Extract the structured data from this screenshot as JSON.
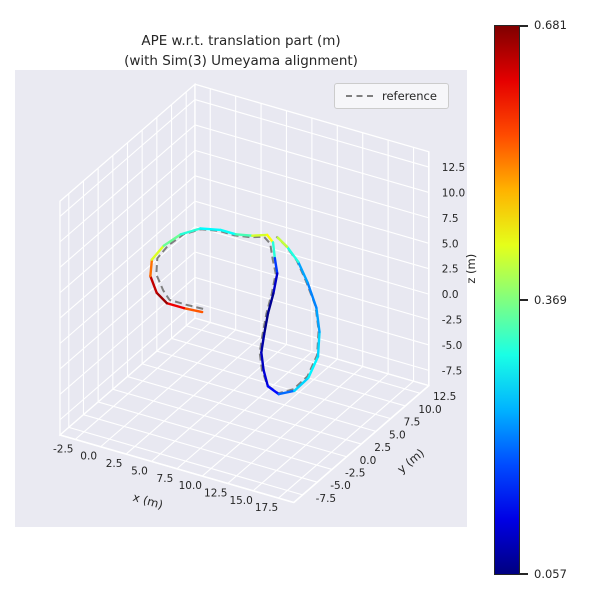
{
  "chart_data": {
    "type": "line",
    "subtype": "3d-trajectory",
    "title": "APE w.r.t. translation part (m)",
    "subtitle": "(with Sim(3) Umeyama alignment)",
    "xlabel": "x (m)",
    "ylabel": "y (m)",
    "zlabel": "z (m)",
    "legend": [
      "reference"
    ],
    "legend_position": "upper right",
    "grid": true,
    "xlim": [
      -4,
      19
    ],
    "ylim": [
      -9,
      14
    ],
    "zlim": [
      -9,
      14
    ],
    "x_ticks": [
      "-2.5",
      "0.0",
      "2.5",
      "5.0",
      "7.5",
      "10.0",
      "12.5",
      "15.0",
      "17.5"
    ],
    "y_ticks": [
      "-7.5",
      "-5.0",
      "-2.5",
      "0.0",
      "2.5",
      "5.0",
      "7.5",
      "10.0",
      "12.5"
    ],
    "z_ticks": [
      "-7.5",
      "-5.0",
      "-2.5",
      "0.0",
      "2.5",
      "5.0",
      "7.5",
      "10.0",
      "12.5"
    ],
    "colorbar": {
      "colormap": "jet",
      "vmin": 0.057,
      "vmax": 0.681,
      "ticks": [
        "0.681",
        "0.369",
        "0.057"
      ]
    },
    "reference": [
      [
        4.3,
        1.0,
        0.8
      ],
      [
        2.9,
        0.6,
        1.0
      ],
      [
        1.4,
        0.3,
        1.2
      ],
      [
        0.5,
        0.8,
        1.6
      ],
      [
        -0.7,
        1.7,
        2.4
      ],
      [
        -1.3,
        2.9,
        3.2
      ],
      [
        -1.0,
        4.2,
        3.9
      ],
      [
        -0.3,
        5.6,
        4.5
      ],
      [
        0.9,
        6.5,
        4.9
      ],
      [
        2.5,
        6.9,
        5.0
      ],
      [
        4.0,
        6.9,
        5.0
      ],
      [
        5.5,
        7.0,
        5.2
      ],
      [
        6.7,
        7.2,
        5.5
      ],
      [
        7.5,
        6.9,
        5.2
      ],
      [
        8.2,
        6.1,
        4.3
      ],
      [
        8.9,
        5.4,
        3.4
      ],
      [
        9.1,
        4.4,
        2.0
      ],
      [
        9.2,
        3.3,
        0.6
      ],
      [
        9.4,
        2.3,
        -0.9
      ],
      [
        9.7,
        1.3,
        -2.1
      ],
      [
        10.5,
        0.3,
        -3.1
      ],
      [
        11.5,
        -0.5,
        -3.9
      ],
      [
        12.8,
        -0.9,
        -4.1
      ],
      [
        14.0,
        -0.4,
        -3.6
      ],
      [
        14.8,
        0.6,
        -2.6
      ],
      [
        15.0,
        1.9,
        -1.1
      ],
      [
        14.4,
        3.2,
        0.5
      ],
      [
        13.4,
        4.4,
        2.0
      ],
      [
        11.9,
        5.4,
        3.5
      ],
      [
        10.4,
        6.4,
        4.6
      ],
      [
        8.9,
        7.1,
        5.3
      ],
      [
        7.7,
        7.6,
        5.6
      ]
    ],
    "estimate": {
      "points": [
        [
          4.5,
          0.5,
          0.8
        ],
        [
          3.0,
          0.0,
          1.0
        ],
        [
          1.5,
          -0.3,
          1.2
        ],
        [
          0.2,
          0.2,
          1.6
        ],
        [
          -1.0,
          1.2,
          2.4
        ],
        [
          -1.6,
          2.5,
          3.2
        ],
        [
          -1.3,
          4.0,
          3.9
        ],
        [
          -0.5,
          5.5,
          4.5
        ],
        [
          0.8,
          6.6,
          4.9
        ],
        [
          2.5,
          7.1,
          5.0
        ],
        [
          4.0,
          7.1,
          5.0
        ],
        [
          5.5,
          7.3,
          5.2
        ],
        [
          6.8,
          7.6,
          5.5
        ],
        [
          7.6,
          7.2,
          5.2
        ],
        [
          8.3,
          6.3,
          4.3
        ],
        [
          9.0,
          5.5,
          3.4
        ],
        [
          9.2,
          4.5,
          2.0
        ],
        [
          9.3,
          3.4,
          0.6
        ],
        [
          9.5,
          2.4,
          -0.9
        ],
        [
          9.8,
          1.4,
          -2.1
        ],
        [
          10.6,
          0.4,
          -3.1
        ],
        [
          11.6,
          -0.6,
          -3.9
        ],
        [
          12.9,
          -1.0,
          -4.1
        ],
        [
          14.2,
          -0.6,
          -3.6
        ],
        [
          15.0,
          0.4,
          -2.6
        ],
        [
          15.2,
          1.7,
          -1.1
        ],
        [
          14.6,
          3.0,
          0.5
        ],
        [
          13.6,
          4.2,
          2.0
        ],
        [
          12.1,
          5.3,
          3.5
        ],
        [
          10.6,
          6.3,
          4.6
        ],
        [
          9.1,
          7.0,
          5.3
        ],
        [
          7.9,
          7.5,
          5.6
        ]
      ],
      "ape_errors": [
        0.52,
        0.58,
        0.645,
        0.681,
        0.6,
        0.47,
        0.38,
        0.33,
        0.3,
        0.28,
        0.31,
        0.36,
        0.48,
        0.41,
        0.22,
        0.12,
        0.08,
        0.057,
        0.07,
        0.09,
        0.1,
        0.12,
        0.16,
        0.24,
        0.29,
        0.28,
        0.25,
        0.22,
        0.21,
        0.26,
        0.36,
        0.46
      ]
    }
  },
  "styles": {
    "figure_bg": "#ffffff",
    "axes_bg": "#eaeaf2",
    "grid_color": "#ffffff",
    "reference_color": "#7f7f7f",
    "text_color": "#262626"
  }
}
